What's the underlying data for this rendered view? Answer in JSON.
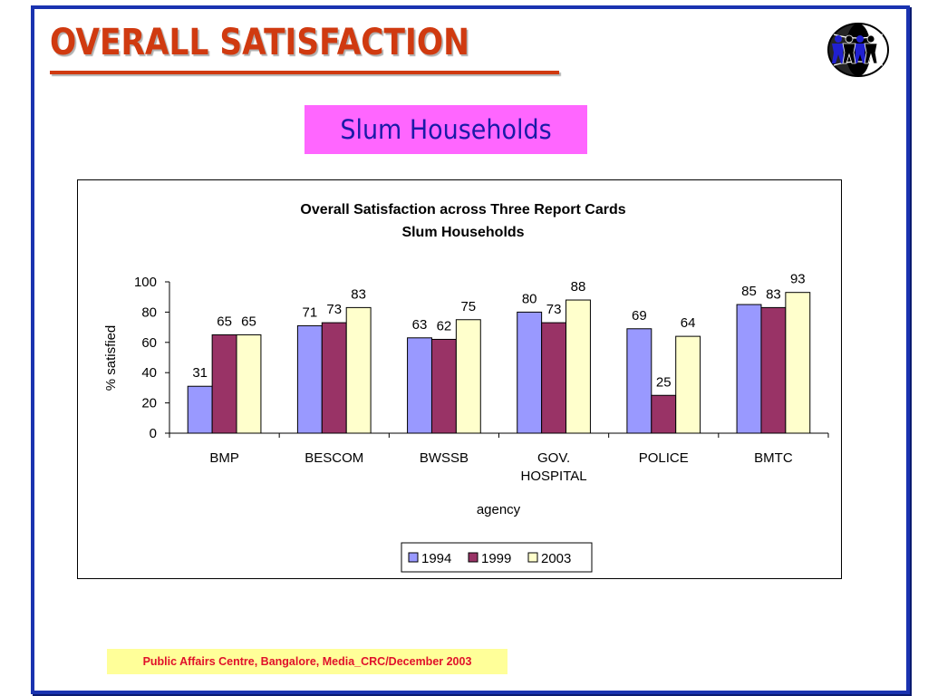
{
  "slide": {
    "title": "OVERALL SATISFACTION",
    "subtitle": "Slum Households",
    "footer": "Public Affairs Centre, Bangalore,  Media_CRC/December 2003",
    "logo_icon": "globe-with-people-icon",
    "colors": {
      "frame": "#1a33b0",
      "title": "#d03a10",
      "subtitle_bg": "#ff66ff",
      "subtitle_text": "#1a1aa8",
      "footer_bg": "#ffff99",
      "footer_text": "#e0102a"
    }
  },
  "chart_data": {
    "type": "bar",
    "title": "Overall Satisfaction across Three Report Cards",
    "subtitle": "Slum Households",
    "xlabel": "agency",
    "ylabel": "% satisfied",
    "ylim": [
      0,
      100
    ],
    "yticks": [
      0,
      20,
      40,
      60,
      80,
      100
    ],
    "grid": false,
    "legend": "bottom-center",
    "categories": [
      "BMP",
      "BESCOM",
      "BWSSB",
      "GOV. HOSPITAL",
      "POLICE",
      "BMTC"
    ],
    "category_lines": [
      [
        "BMP"
      ],
      [
        "BESCOM"
      ],
      [
        "BWSSB"
      ],
      [
        "GOV.",
        "HOSPITAL"
      ],
      [
        "POLICE"
      ],
      [
        "BMTC"
      ]
    ],
    "series": [
      {
        "name": "1994",
        "color": "#9999ff",
        "values": [
          31,
          71,
          63,
          80,
          69,
          85
        ]
      },
      {
        "name": "1999",
        "color": "#993366",
        "values": [
          65,
          73,
          62,
          73,
          25,
          83
        ]
      },
      {
        "name": "2003",
        "color": "#ffffcc",
        "values": [
          65,
          83,
          75,
          88,
          64,
          93
        ]
      }
    ]
  }
}
